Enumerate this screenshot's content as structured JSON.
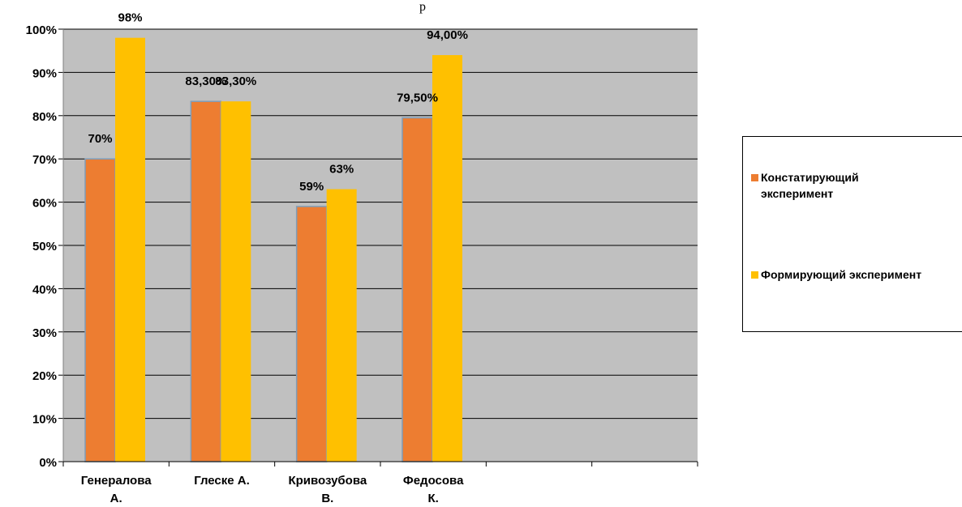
{
  "title_fragment": "р",
  "chart_data": {
    "type": "bar",
    "categories": [
      "Генералова А.",
      "Глеске А.",
      "Кривозубова В.",
      "Федосова К.",
      "",
      ""
    ],
    "series": [
      {
        "name": "Констатирующий эксперимент",
        "color": "#ED7D31",
        "values": [
          70,
          83.3,
          59,
          79.5,
          null,
          null
        ],
        "labels": [
          "70%",
          "83,30%",
          "59%",
          "79,50%",
          "",
          ""
        ]
      },
      {
        "name": "Формирующий эксперимент",
        "color": "#FFC000",
        "values": [
          98,
          83.3,
          63,
          94,
          null,
          null
        ],
        "labels": [
          "98%",
          "83,30%",
          "63%",
          "94,00%",
          "",
          ""
        ]
      }
    ],
    "yticks": [
      "0%",
      "10%",
      "20%",
      "30%",
      "40%",
      "50%",
      "60%",
      "70%",
      "80%",
      "90%",
      "100%"
    ],
    "ylim": [
      0,
      100
    ],
    "grid": true,
    "plot_background": "#C0C0C0",
    "legend_position": "right"
  }
}
